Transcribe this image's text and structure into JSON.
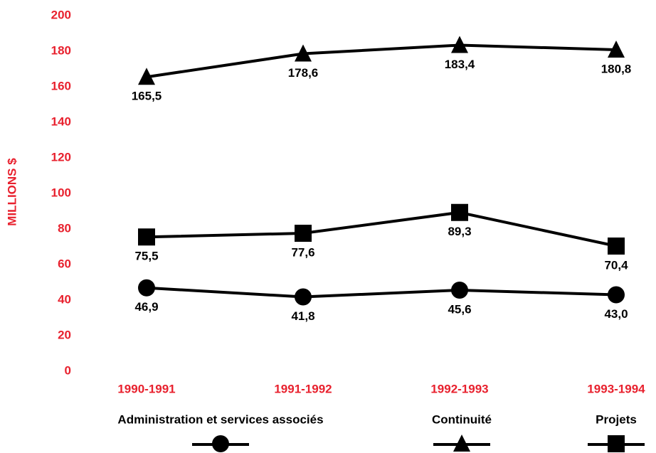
{
  "chart_data": {
    "type": "line",
    "ylabel": "MILLIONS $",
    "categories": [
      "1990-1991",
      "1991-1992",
      "1992-1993",
      "1993-1994"
    ],
    "series": [
      {
        "name": "Administration et services associés",
        "color": "#000000",
        "marker": "circle",
        "values": [
          46.9,
          41.8,
          45.6,
          43.0
        ],
        "value_labels": [
          "46,9",
          "41,8",
          "45,6",
          "43,0"
        ]
      },
      {
        "name": "Continuité",
        "color": "#000000",
        "marker": "triangle",
        "values": [
          165.5,
          178.6,
          183.4,
          180.8
        ],
        "value_labels": [
          "165,5",
          "178,6",
          "183,4",
          "180,8"
        ]
      },
      {
        "name": "Projets",
        "color": "#000000",
        "marker": "square",
        "values": [
          75.5,
          77.6,
          89.3,
          70.4
        ],
        "value_labels": [
          "75,5",
          "77,6",
          "89,3",
          "70,4"
        ]
      }
    ],
    "ylim": [
      0,
      200
    ],
    "yticks": [
      0,
      20,
      40,
      60,
      80,
      100,
      120,
      140,
      160,
      180,
      200
    ],
    "axis_color": "#e8212e",
    "grid": false
  }
}
